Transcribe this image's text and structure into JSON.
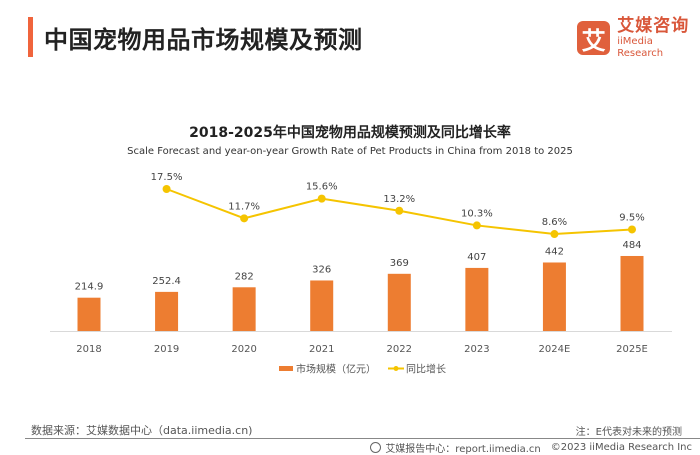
{
  "header": {
    "title": "中国宠物用品市场规模及预测",
    "logo": {
      "mark": "艾",
      "name_cn": "艾媒咨询",
      "name_en": "iiMedia Research"
    }
  },
  "chart_data": {
    "type": "bar",
    "title": "2018-2025年中国宠物用品规模预测及同比增长率",
    "subtitle": "Scale Forecast and year-on-year Growth Rate of Pet Products in China from 2018 to 2025",
    "categories": [
      "2018",
      "2019",
      "2020",
      "2021",
      "2022",
      "2023",
      "2024E",
      "2025E"
    ],
    "series": [
      {
        "name": "市场规模（亿元）",
        "type": "bar",
        "color": "#ed7d31",
        "values": [
          214.9,
          252.4,
          282,
          326,
          369,
          407,
          442,
          484
        ],
        "labels": [
          "214.9",
          "252.4",
          "282",
          "326",
          "369",
          "407",
          "442",
          "484"
        ]
      },
      {
        "name": "同比增长",
        "type": "line",
        "color": "#f5c400",
        "values": [
          null,
          17.5,
          11.7,
          15.6,
          13.2,
          10.3,
          8.6,
          9.5
        ],
        "labels": [
          "",
          "17.5%",
          "11.7%",
          "15.6%",
          "13.2%",
          "10.3%",
          "8.6%",
          "9.5%"
        ]
      }
    ],
    "legend": "bottom-center",
    "grid": false
  },
  "footer": {
    "source": "数据来源：艾媒数据中心（data.iimedia.cn)",
    "note": "注：E代表对未来的预测",
    "report_center": "艾媒报告中心：report.iimedia.cn",
    "copyright": "©2023  iiMedia Research  Inc"
  }
}
